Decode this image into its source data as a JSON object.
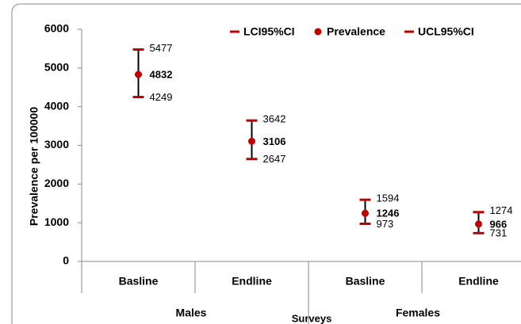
{
  "chart_data": {
    "type": "errorbar",
    "y_axis_label": "Prevalence per 100000",
    "x_axis_label": "Surveys",
    "categories": [
      "Basline",
      "Endline",
      "Basline",
      "Endline"
    ],
    "groups": [
      "Males",
      "Females"
    ],
    "ylim": [
      0,
      6000
    ],
    "yticks": [
      0,
      1000,
      2000,
      3000,
      4000,
      5000,
      6000
    ],
    "series": [
      {
        "name": "LCI95%CI",
        "color": "#c00000",
        "values": [
          4249,
          2647,
          973,
          731
        ]
      },
      {
        "name": "Prevalence",
        "color": "#c00000",
        "values": [
          4832,
          3106,
          1246,
          966
        ]
      },
      {
        "name": "UCL95%CI",
        "color": "#c00000",
        "values": [
          5477,
          3642,
          1594,
          1274
        ]
      }
    ]
  }
}
